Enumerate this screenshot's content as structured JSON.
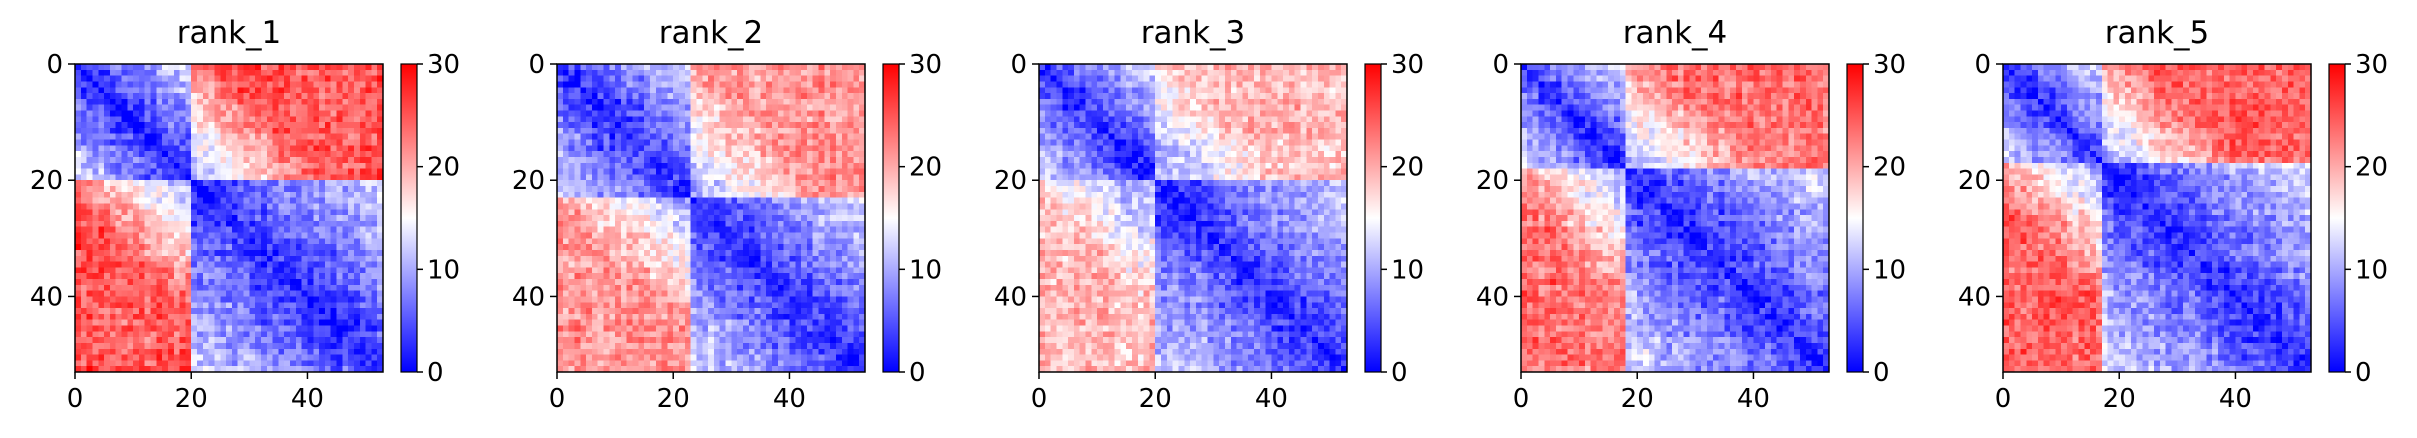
{
  "chart_data": {
    "type": "heatmap",
    "n": 53,
    "colormap": "bwr",
    "colorbar": {
      "vmin": 0,
      "vmax": 30,
      "ticks": [
        0,
        10,
        20,
        30
      ]
    },
    "x_ticks": [
      0,
      20,
      40
    ],
    "y_ticks": [
      0,
      20,
      40
    ],
    "panels": [
      {
        "title": "rank_1",
        "tad_boundary": 20,
        "far_values": {
          "top_right": 25,
          "bottom_left": 23
        }
      },
      {
        "title": "rank_2",
        "tad_boundary": 23,
        "far_values": {
          "top_right": 21,
          "bottom_left": 17
        }
      },
      {
        "title": "rank_3",
        "tad_boundary": 20,
        "far_values": {
          "top_right": 19,
          "bottom_left": 19
        }
      },
      {
        "title": "rank_4",
        "tad_boundary": 18,
        "far_values": {
          "top_right": 23,
          "bottom_left": 24
        }
      },
      {
        "title": "rank_5",
        "tad_boundary": 17,
        "far_values": {
          "top_right": 24,
          "bottom_left": 23
        }
      }
    ]
  }
}
